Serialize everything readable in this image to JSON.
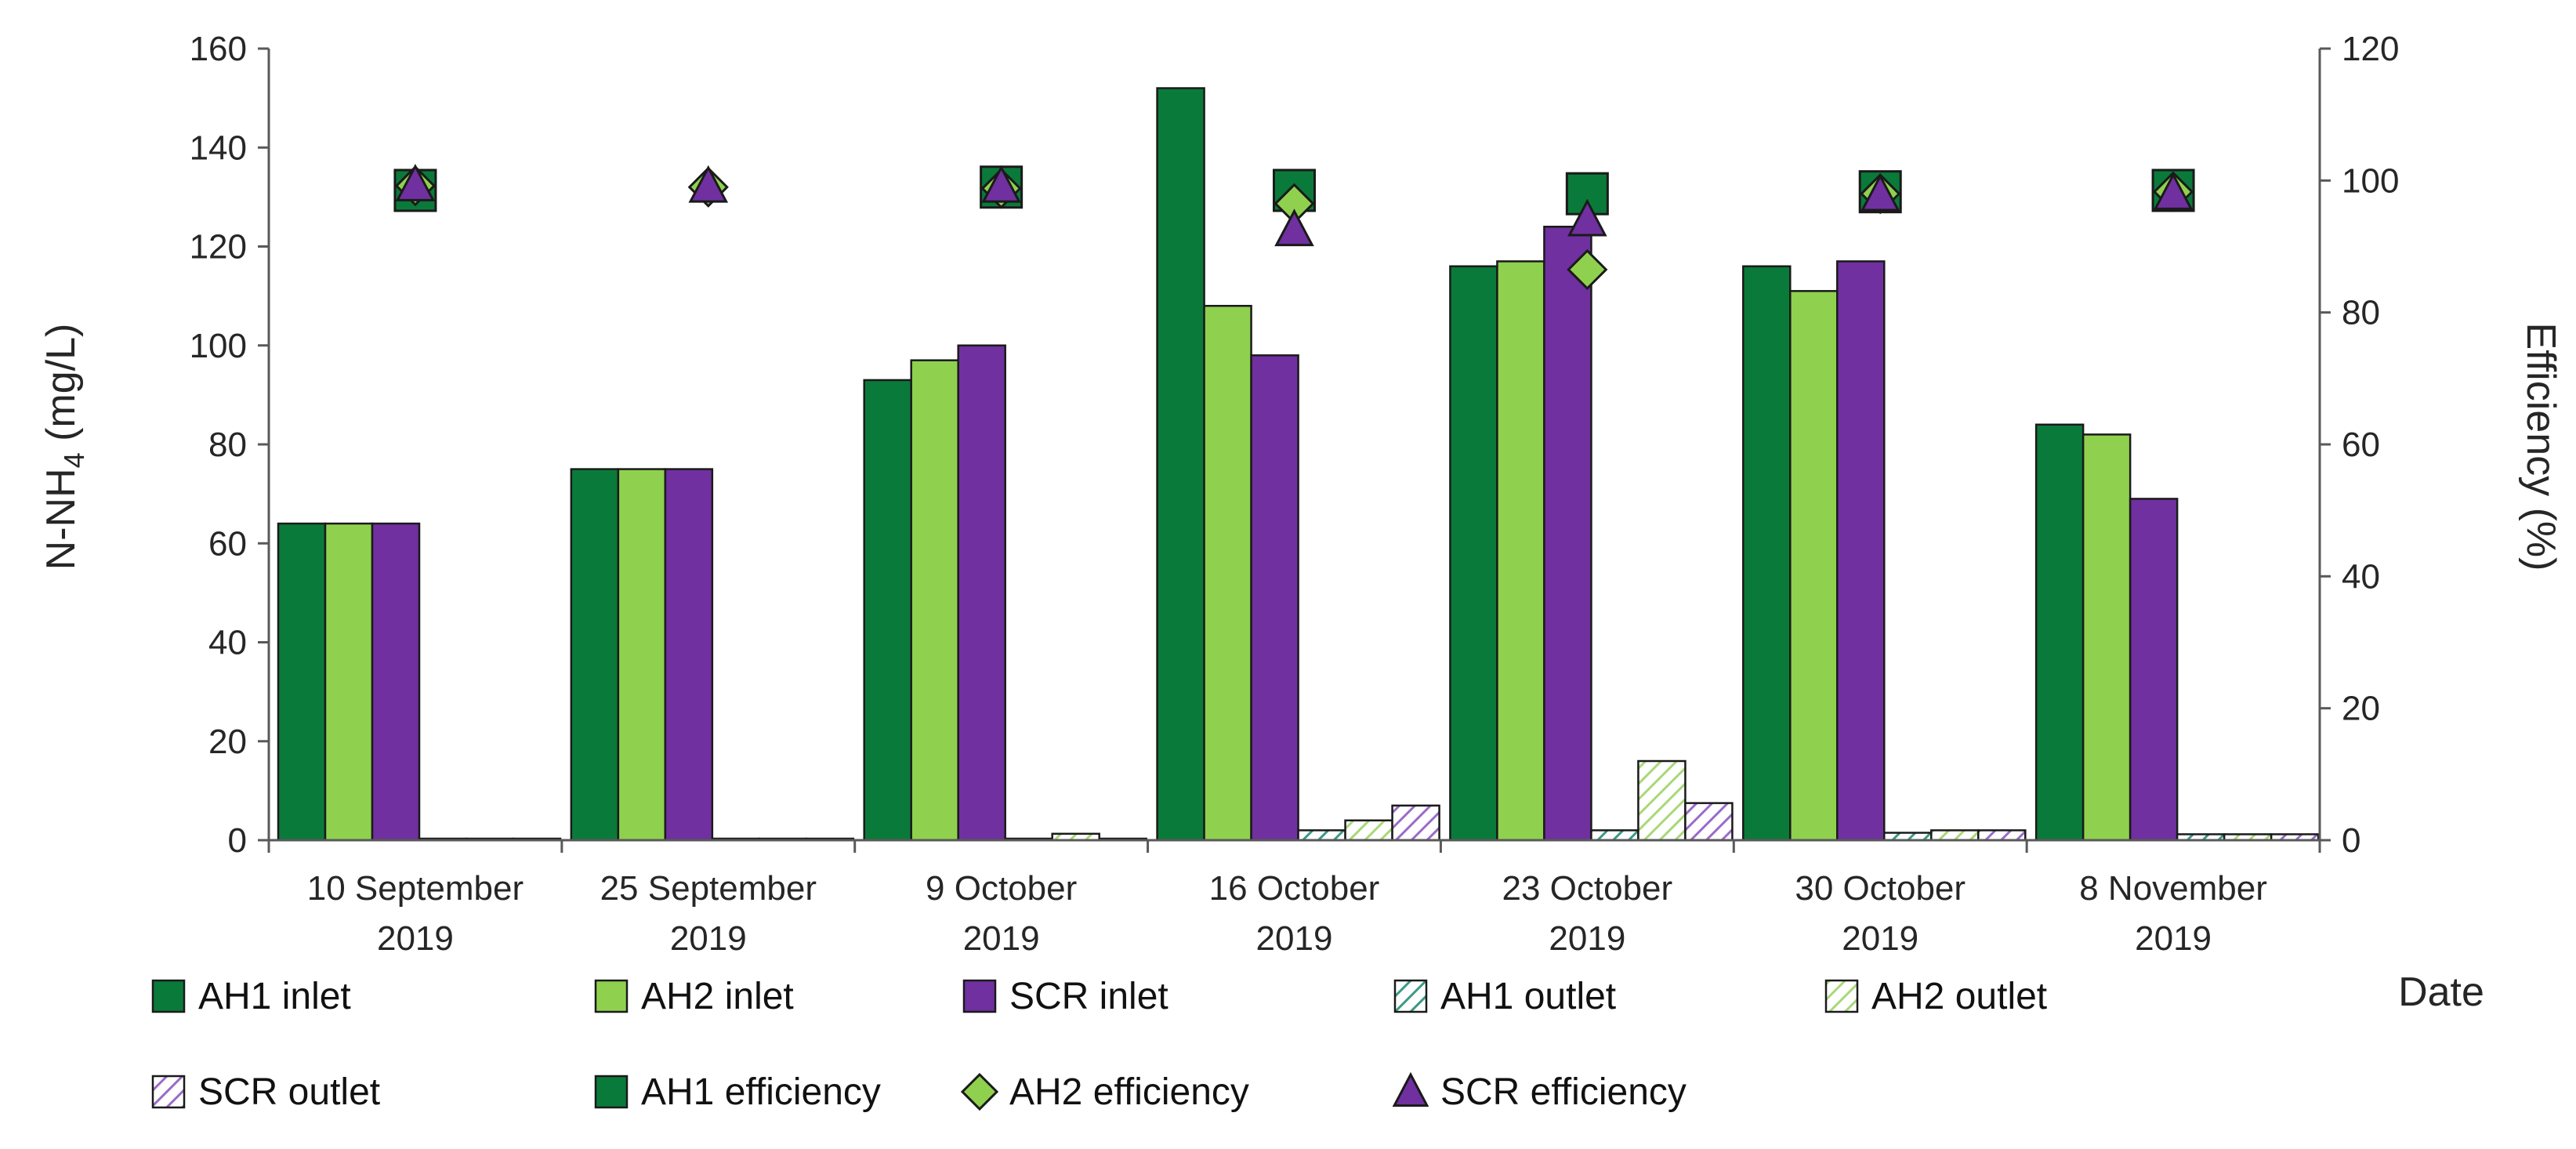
{
  "chart_data": {
    "type": "bar",
    "categories": [
      [
        "10 September",
        "2019"
      ],
      [
        "25 September",
        "2019"
      ],
      [
        "9 October",
        "2019"
      ],
      [
        "16 October",
        "2019"
      ],
      [
        "23 October",
        "2019"
      ],
      [
        "30 October",
        "2019"
      ],
      [
        "8 November",
        "2019"
      ]
    ],
    "xlabel": "Date",
    "ylabel_left": {
      "base": "N-NH",
      "sub": "4",
      "unit": " (mg/L)"
    },
    "ylabel_right": "Efficiency (%)",
    "ylim_left": [
      0,
      160
    ],
    "yticks_left": [
      "0",
      "20",
      "40",
      "60",
      "80",
      "100",
      "120",
      "140",
      "160"
    ],
    "ylim_right": [
      0,
      120
    ],
    "yticks_right": [
      "0",
      "20",
      "40",
      "60",
      "80",
      "100",
      "120"
    ],
    "grid": false,
    "legend_position": "bottom",
    "colors": {
      "ah1": "#0a7a3a",
      "ah2": "#8fd14f",
      "scr": "#7030a0",
      "ah1_hatch": "#3a9a86",
      "ah2_hatch": "#a8d878",
      "scr_hatch": "#9b6bc8"
    },
    "series": [
      {
        "name": "AH1 inlet",
        "kind": "bar",
        "axis": "left",
        "color": "#0a7a3a",
        "pattern": "solid",
        "values": [
          64,
          75,
          93,
          152,
          116,
          116,
          84
        ]
      },
      {
        "name": "AH2 inlet",
        "kind": "bar",
        "axis": "left",
        "color": "#8fd14f",
        "pattern": "solid",
        "values": [
          64,
          75,
          97,
          108,
          117,
          111,
          82
        ]
      },
      {
        "name": "SCR inlet",
        "kind": "bar",
        "axis": "left",
        "color": "#7030a0",
        "pattern": "solid",
        "values": [
          64,
          75,
          100,
          98,
          124,
          117,
          69
        ]
      },
      {
        "name": "AH1 outlet",
        "kind": "bar",
        "axis": "left",
        "color": "#3a9a86",
        "pattern": "hatch",
        "values": [
          0.3,
          0.3,
          0.3,
          2,
          2,
          1.5,
          1.2
        ]
      },
      {
        "name": "AH2 outlet",
        "kind": "bar",
        "axis": "left",
        "color": "#a8d878",
        "pattern": "hatch",
        "values": [
          0.3,
          0.3,
          1.3,
          4,
          16,
          2,
          1.2
        ]
      },
      {
        "name": "SCR outlet",
        "kind": "bar",
        "axis": "left",
        "color": "#9b6bc8",
        "pattern": "hatch",
        "values": [
          0.3,
          0.3,
          0.3,
          7,
          7.5,
          2,
          1.2
        ]
      },
      {
        "name": "AH1 efficiency",
        "kind": "marker",
        "marker": "square",
        "axis": "right",
        "color": "#0a7a3a",
        "values": [
          98.5,
          null,
          99,
          98.5,
          98,
          98.3,
          98.5
        ]
      },
      {
        "name": "AH2 efficiency",
        "kind": "marker",
        "marker": "diamond",
        "axis": "right",
        "color": "#8fd14f",
        "values": [
          99.2,
          99,
          98.8,
          96.5,
          86.5,
          98,
          98.3
        ]
      },
      {
        "name": "SCR efficiency",
        "kind": "marker",
        "marker": "triangle",
        "axis": "right",
        "color": "#7030a0",
        "values": [
          99.3,
          99.1,
          99.1,
          92.5,
          94,
          97.8,
          98
        ]
      }
    ],
    "legend": {
      "row1": [
        "AH1 inlet",
        "AH2 inlet",
        "SCR inlet",
        "AH1 outlet",
        "AH2 outlet"
      ],
      "row2": [
        "SCR outlet",
        "AH1 efficiency",
        "AH2 efficiency",
        "SCR efficiency"
      ]
    }
  }
}
